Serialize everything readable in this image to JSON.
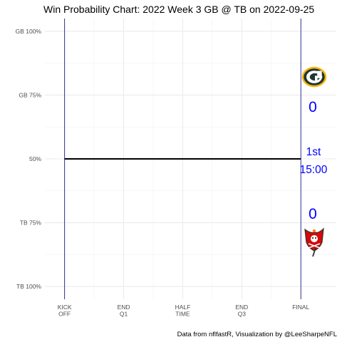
{
  "chart_data": {
    "type": "line",
    "title": "Win Probability Chart: 2022 Week 3 GB @ TB on 2022-09-25",
    "caption": "Data from nflfastR, Visualization by @LeeSharpeNFL",
    "x_ticks": [
      {
        "value": 0,
        "lines": [
          "KICK",
          "OFF"
        ]
      },
      {
        "value": 15,
        "lines": [
          "END",
          "Q1"
        ]
      },
      {
        "value": 30,
        "lines": [
          "HALF",
          "TIME"
        ]
      },
      {
        "value": 45,
        "lines": [
          "END",
          "Q3"
        ]
      },
      {
        "value": 60,
        "lines": [
          "FINAL"
        ]
      }
    ],
    "xlim": [
      -5,
      69
    ],
    "y_ticks": [
      {
        "value": 1.0,
        "label": "GB 100%"
      },
      {
        "value": 0.75,
        "label": "GB 75%"
      },
      {
        "value": 0.5,
        "label": "50%"
      },
      {
        "value": 0.25,
        "label": "TB 75%"
      },
      {
        "value": 0.0,
        "label": "TB 100%"
      }
    ],
    "ylim": [
      -0.05,
      1.05
    ],
    "grid": true,
    "series": [
      {
        "x": [
          0,
          60
        ],
        "y": [
          0.5,
          0.5
        ],
        "color": "#000000"
      }
    ],
    "vlines": [
      0,
      60
    ],
    "vline_color": "#1f1f8c",
    "home_team": {
      "abbr": "TB",
      "score": "0",
      "logo": "buccaneers-logo"
    },
    "away_team": {
      "abbr": "GB",
      "score": "0",
      "logo": "packers-logo"
    },
    "game_clock": {
      "quarter": "1st",
      "time": "15:00"
    },
    "text_color": "#0000ff"
  }
}
